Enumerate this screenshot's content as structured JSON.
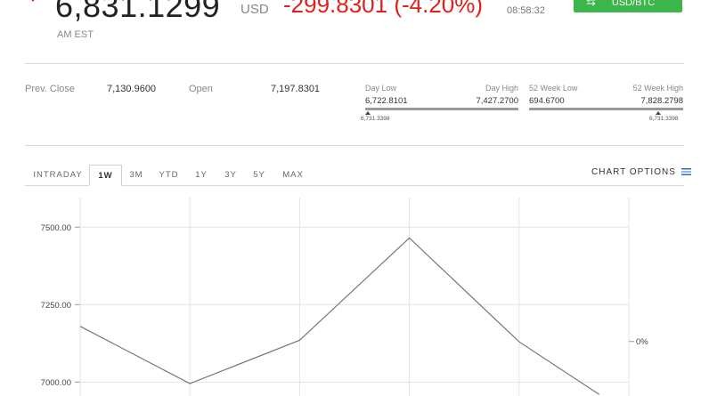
{
  "header": {
    "price": "6,831.1299",
    "currency": "USD",
    "change": "-299.8301 (-4.20%)",
    "time": "08:58:32",
    "timezone": "AM EST",
    "convert_label": "USD/BTC"
  },
  "stats": {
    "prev_close_label": "Prev. Close",
    "prev_close_value": "7,130.9600",
    "open_label": "Open",
    "open_value": "7,197.8301",
    "day_low_label": "Day Low",
    "day_high_label": "Day High",
    "day_low_value": "6,722.8101",
    "day_high_value": "7,427.2700",
    "day_current": "6,731.3398",
    "week52_low_label": "52 Week Low",
    "week52_high_label": "52 Week High",
    "week52_low_value": "694.6700",
    "week52_high_value": "7,828.2798",
    "week52_current": "6,731.3398"
  },
  "tabs": [
    "INTRADAY",
    "1W",
    "3M",
    "YTD",
    "1Y",
    "3Y",
    "5Y",
    "MAX"
  ],
  "active_tab": "1W",
  "chart_options_label": "CHART OPTIONS",
  "chart_data": {
    "type": "line",
    "y_ticks": [
      "7500.00",
      "7250.00",
      "7000.00"
    ],
    "y_tick_values": [
      7500,
      7250,
      7000
    ],
    "right_label": "0%",
    "ylim": [
      6955,
      7630
    ],
    "x_gridlines": 5,
    "grid": true,
    "series": [
      {
        "values": [
          7180,
          6995,
          7135,
          7465,
          7130,
          6960
        ]
      }
    ]
  }
}
